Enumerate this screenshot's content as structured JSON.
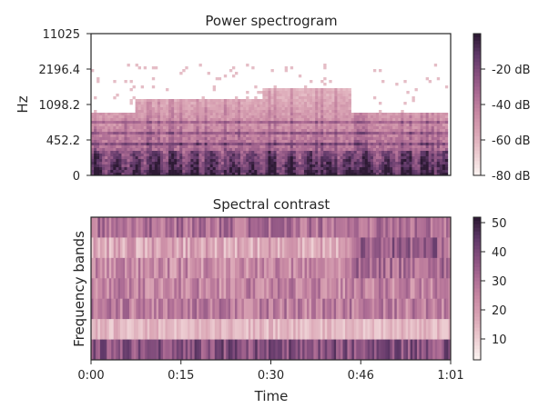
{
  "colors": {
    "cmap": [
      "#faf0ee",
      "#ecccd1",
      "#dba7b6",
      "#c98aa4",
      "#ad6c94",
      "#87507f",
      "#5f3868",
      "#2e1a35"
    ],
    "axis": "#262626"
  },
  "chart_data": [
    {
      "type": "heatmap",
      "title": "Power spectrogram",
      "xlabel": "",
      "ylabel": "Hz",
      "y_scale": "log",
      "y_ticks": [
        "0",
        "452.2",
        "1098.2",
        "2196.4",
        "11025"
      ],
      "x_range_seconds": [
        0,
        61
      ],
      "colorbar": {
        "range": [
          -80,
          0
        ],
        "ticks": [
          "-20 dB",
          "-40 dB",
          "-60 dB",
          "-80 dB"
        ]
      }
    },
    {
      "type": "heatmap",
      "title": "Spectral contrast",
      "xlabel": "Time",
      "ylabel": "Frequency bands",
      "bands": 7,
      "x_ticks": [
        "0:00",
        "0:15",
        "0:30",
        "0:46",
        "1:01"
      ],
      "x_range_seconds": [
        0,
        61
      ],
      "colorbar": {
        "range": [
          3,
          53
        ],
        "ticks": [
          "50",
          "40",
          "30",
          "20",
          "10"
        ]
      }
    }
  ]
}
